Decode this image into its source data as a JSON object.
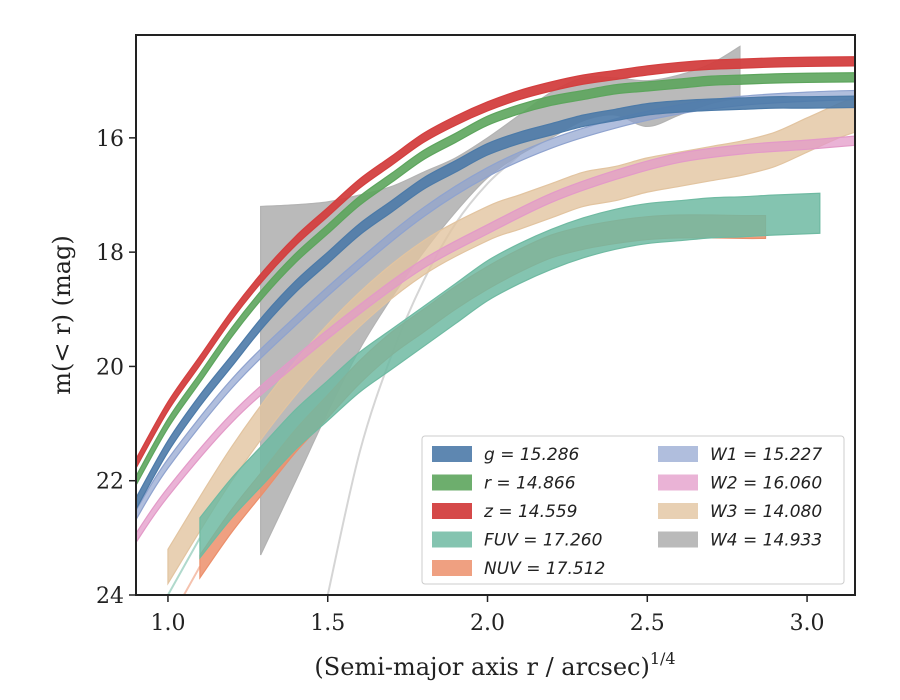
{
  "chart_data": {
    "type": "line",
    "xlabel": "(Semi-major axis r / arcsec)",
    "xlabel_exponent": "1/4",
    "ylabel": "m(< r) (mag)",
    "xlim": [
      0.9,
      3.15
    ],
    "ylim": [
      24,
      14.2
    ],
    "y_inverted": true,
    "grid": false,
    "legend_placement": "lower-right",
    "x_ticks": [
      1.0,
      1.5,
      2.0,
      2.5,
      3.0
    ],
    "x_tick_labels": [
      "1.0",
      "1.5",
      "2.0",
      "2.5",
      "3.0"
    ],
    "y_ticks": [
      16,
      18,
      20,
      22,
      24
    ],
    "y_tick_labels": [
      "16",
      "18",
      "20",
      "22",
      "24"
    ],
    "series": [
      {
        "name": "g",
        "legend_value": "15.286",
        "color": "#4c7aa8",
        "x": [
          0.9,
          1.0,
          1.1,
          1.2,
          1.3,
          1.4,
          1.5,
          1.6,
          1.7,
          1.8,
          1.9,
          2.0,
          2.1,
          2.2,
          2.3,
          2.4,
          2.5,
          2.6,
          2.7,
          2.8,
          2.9,
          3.0,
          3.15
        ],
        "y": [
          22.4,
          21.4,
          20.6,
          19.9,
          19.2,
          18.6,
          18.1,
          17.6,
          17.2,
          16.8,
          16.5,
          16.2,
          16.0,
          15.85,
          15.7,
          15.6,
          15.5,
          15.45,
          15.42,
          15.4,
          15.38,
          15.38,
          15.37
        ],
        "band": 0.1,
        "alpha": 0.9
      },
      {
        "name": "r",
        "legend_value": "14.866",
        "color": "#5da55d",
        "x": [
          0.9,
          1.0,
          1.1,
          1.2,
          1.3,
          1.4,
          1.5,
          1.6,
          1.7,
          1.8,
          1.9,
          2.0,
          2.1,
          2.2,
          2.3,
          2.4,
          2.5,
          2.6,
          2.7,
          2.8,
          2.9,
          3.0,
          3.15
        ],
        "y": [
          22.0,
          21.0,
          20.2,
          19.4,
          18.7,
          18.1,
          17.6,
          17.1,
          16.7,
          16.3,
          16.0,
          15.7,
          15.5,
          15.35,
          15.25,
          15.15,
          15.1,
          15.05,
          15.0,
          14.98,
          14.96,
          14.95,
          14.94
        ],
        "band": 0.08,
        "alpha": 0.9
      },
      {
        "name": "z",
        "legend_value": "14.559",
        "color": "#d33f3f",
        "x": [
          0.9,
          1.0,
          1.1,
          1.2,
          1.3,
          1.4,
          1.5,
          1.6,
          1.7,
          1.8,
          1.9,
          2.0,
          2.1,
          2.2,
          2.3,
          2.4,
          2.5,
          2.6,
          2.7,
          2.8,
          2.9,
          3.0,
          3.15
        ],
        "y": [
          21.7,
          20.7,
          19.9,
          19.1,
          18.4,
          17.8,
          17.3,
          16.8,
          16.4,
          16.0,
          15.7,
          15.45,
          15.25,
          15.1,
          14.98,
          14.9,
          14.82,
          14.76,
          14.72,
          14.7,
          14.68,
          14.67,
          14.66
        ],
        "band": 0.08,
        "alpha": 0.95
      },
      {
        "name": "FUV",
        "legend_value": "17.260",
        "color": "#6fbaa2",
        "x": [
          1.1,
          1.2,
          1.3,
          1.4,
          1.5,
          1.6,
          1.7,
          1.8,
          1.9,
          2.0,
          2.1,
          2.2,
          2.3,
          2.4,
          2.5,
          2.6,
          2.7,
          2.8,
          2.9,
          3.04
        ],
        "y": [
          23.0,
          22.3,
          21.7,
          21.1,
          20.6,
          20.1,
          19.7,
          19.3,
          18.9,
          18.5,
          18.2,
          17.95,
          17.75,
          17.6,
          17.5,
          17.45,
          17.4,
          17.38,
          17.35,
          17.32
        ],
        "band": 0.35,
        "alpha": 0.85,
        "ext_x": [
          0.9,
          1.0,
          1.1
        ],
        "ext_y": [
          25.0,
          24.0,
          23.0
        ]
      },
      {
        "name": "NUV",
        "legend_value": "17.512",
        "color": "#ec8f6b",
        "x": [
          1.1,
          1.2,
          1.3,
          1.4,
          1.5,
          1.6,
          1.7,
          1.8,
          1.9,
          2.0,
          2.1,
          2.2,
          2.3,
          2.4,
          2.5,
          2.6,
          2.7,
          2.8,
          2.87
        ],
        "y": [
          23.5,
          22.7,
          22.0,
          21.3,
          20.7,
          20.1,
          19.6,
          19.2,
          18.8,
          18.45,
          18.15,
          17.9,
          17.75,
          17.65,
          17.58,
          17.55,
          17.55,
          17.56,
          17.56
        ],
        "band": 0.2,
        "alpha": 0.85,
        "ext_x": [
          0.9,
          1.0,
          1.1
        ],
        "ext_y": [
          25.5,
          24.5,
          23.5
        ]
      },
      {
        "name": "W1",
        "legend_value": "15.227",
        "color": "#8fa3cf",
        "x": [
          0.9,
          1.0,
          1.2,
          1.4,
          1.6,
          1.8,
          2.0,
          2.2,
          2.4,
          2.6,
          2.8,
          3.0,
          3.15
        ],
        "y": [
          22.6,
          21.7,
          20.3,
          19.2,
          18.2,
          17.3,
          16.6,
          16.1,
          15.75,
          15.5,
          15.35,
          15.28,
          15.25
        ],
        "band": 0.08,
        "alpha": 0.7
      },
      {
        "name": "W2",
        "legend_value": "16.060",
        "color": "#e39ac8",
        "x": [
          0.9,
          1.0,
          1.2,
          1.4,
          1.6,
          1.8,
          2.0,
          2.2,
          2.4,
          2.6,
          2.8,
          3.0,
          3.15
        ],
        "y": [
          23.0,
          22.2,
          20.9,
          19.9,
          19.0,
          18.2,
          17.6,
          17.05,
          16.65,
          16.35,
          16.2,
          16.12,
          16.05
        ],
        "band": 0.08,
        "alpha": 0.75
      },
      {
        "name": "W3",
        "legend_value": "14.080",
        "color": "#e2c4a0",
        "x": [
          1.0,
          1.2,
          1.4,
          1.6,
          1.8,
          2.0,
          2.1,
          2.2,
          2.3,
          2.4,
          2.5,
          2.6,
          2.7,
          2.8,
          2.9,
          3.0,
          3.1,
          3.15
        ],
        "y": [
          23.5,
          21.7,
          20.2,
          19.0,
          18.1,
          17.5,
          17.3,
          17.1,
          16.9,
          16.8,
          16.65,
          16.55,
          16.45,
          16.35,
          16.2,
          15.95,
          15.7,
          15.6
        ],
        "band": 0.3,
        "alpha": 0.8
      },
      {
        "name": "W4",
        "legend_value": "14.933",
        "color": "#b3b3b3",
        "x": [
          1.29,
          1.4,
          1.5,
          1.6,
          1.7,
          1.8,
          1.9,
          2.0,
          2.1,
          2.2,
          2.3,
          2.4,
          2.5,
          2.6,
          2.7,
          2.79
        ],
        "y_upper": [
          17.2,
          17.17,
          17.12,
          17.0,
          16.85,
          16.6,
          16.35,
          16.0,
          15.6,
          15.2,
          14.95,
          14.95,
          15.0,
          14.9,
          14.7,
          14.4
        ],
        "y_lower": [
          23.3,
          22.0,
          20.8,
          19.7,
          18.8,
          18.0,
          17.3,
          16.7,
          16.3,
          16.0,
          15.7,
          15.6,
          15.8,
          15.6,
          15.4,
          15.3
        ],
        "alpha": 0.9,
        "ext_x": [
          1.5,
          1.6,
          1.7,
          1.8,
          1.9,
          2.0,
          2.1
        ],
        "ext_y": [
          24.0,
          21.5,
          19.8,
          18.5,
          17.5,
          16.8,
          16.3
        ]
      }
    ]
  }
}
